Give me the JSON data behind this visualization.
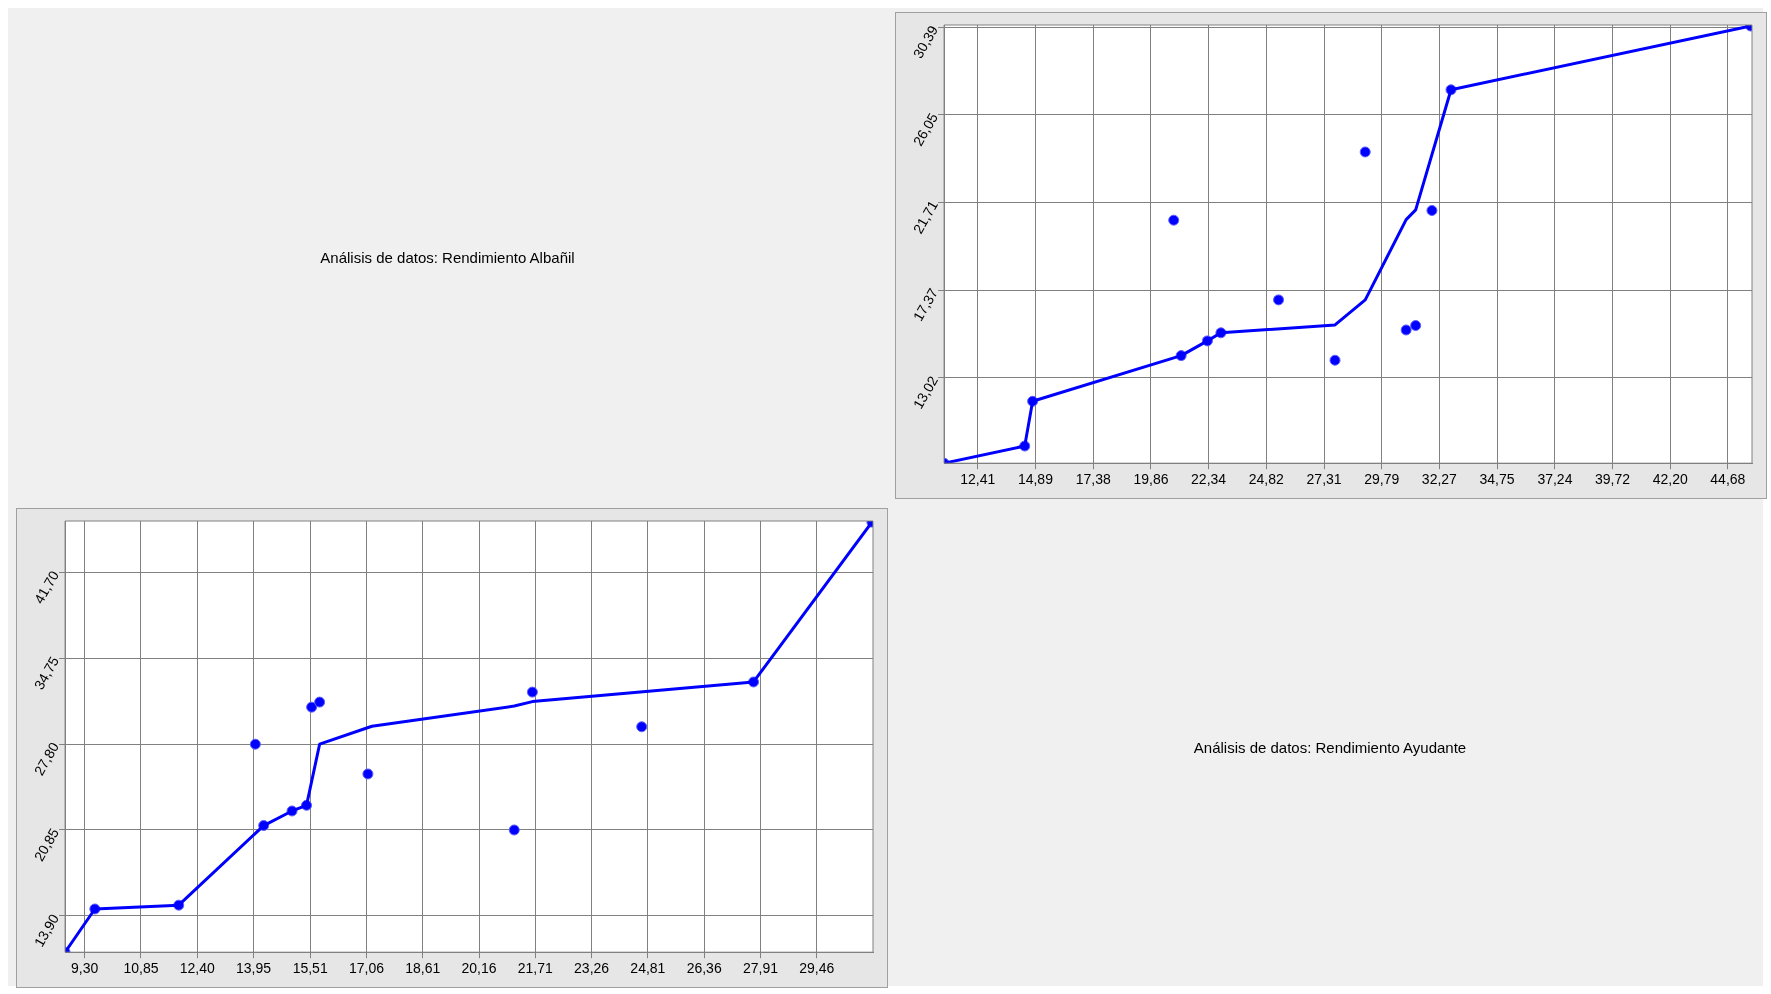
{
  "chart_data": [
    {
      "type": "other",
      "title": "Análisis de datos: Rendimiento Albañil"
    },
    {
      "type": "scatter",
      "grid": true,
      "marker": "circle",
      "xlim": [
        10.96,
        45.72
      ],
      "ylim": [
        8.79,
        30.5
      ],
      "xticks": [
        {
          "value": 12.41,
          "label": "12,41"
        },
        {
          "value": 14.89,
          "label": "14,89"
        },
        {
          "value": 17.38,
          "label": "17,38"
        },
        {
          "value": 19.86,
          "label": "19,86"
        },
        {
          "value": 22.34,
          "label": "22,34"
        },
        {
          "value": 24.82,
          "label": "24,82"
        },
        {
          "value": 27.31,
          "label": "27,31"
        },
        {
          "value": 29.79,
          "label": "29,79"
        },
        {
          "value": 32.27,
          "label": "32,27"
        },
        {
          "value": 34.75,
          "label": "34,75"
        },
        {
          "value": 37.24,
          "label": "37,24"
        },
        {
          "value": 39.72,
          "label": "39,72"
        },
        {
          "value": 42.2,
          "label": "42,20"
        },
        {
          "value": 44.68,
          "label": "44,68"
        }
      ],
      "yticks": [
        {
          "value": 13.02,
          "label": "13,02"
        },
        {
          "value": 17.37,
          "label": "17,37"
        },
        {
          "value": 21.71,
          "label": "21,71"
        },
        {
          "value": 26.05,
          "label": "26,05"
        },
        {
          "value": 30.39,
          "label": "30,39"
        }
      ],
      "series": [
        {
          "type": "line",
          "marker": "none",
          "color": "#0000ff",
          "x": [
            10.96,
            14.43,
            14.77,
            21.16,
            22.29,
            22.87,
            27.78,
            29.08,
            30.84,
            31.25,
            32.77,
            45.66
          ],
          "values": [
            8.79,
            9.64,
            11.86,
            14.12,
            14.85,
            15.25,
            15.64,
            16.88,
            20.86,
            21.34,
            27.29,
            30.45
          ]
        },
        {
          "type": "scatter",
          "color": "#0000ff",
          "x": [
            10.96,
            14.43,
            14.77,
            21.16,
            22.29,
            22.87,
            32.77,
            45.66,
            20.84,
            25.35,
            27.78,
            29.08,
            30.84,
            31.25,
            31.95
          ],
          "values": [
            8.79,
            9.64,
            11.86,
            14.12,
            14.85,
            15.25,
            27.29,
            30.45,
            20.83,
            16.88,
            13.89,
            24.21,
            15.39,
            15.61,
            21.31
          ]
        }
      ]
    },
    {
      "type": "scatter",
      "grid": true,
      "marker": "circle",
      "xlim": [
        8.76,
        31.01
      ],
      "ylim": [
        10.95,
        45.88
      ],
      "xticks": [
        {
          "value": 9.3,
          "label": "9,30"
        },
        {
          "value": 10.85,
          "label": "10,85"
        },
        {
          "value": 12.4,
          "label": "12,40"
        },
        {
          "value": 13.95,
          "label": "13,95"
        },
        {
          "value": 15.51,
          "label": "15,51"
        },
        {
          "value": 17.06,
          "label": "17,06"
        },
        {
          "value": 18.61,
          "label": "18,61"
        },
        {
          "value": 20.16,
          "label": "20,16"
        },
        {
          "value": 21.71,
          "label": "21,71"
        },
        {
          "value": 23.26,
          "label": "23,26"
        },
        {
          "value": 24.81,
          "label": "24,81"
        },
        {
          "value": 26.36,
          "label": "26,36"
        },
        {
          "value": 27.91,
          "label": "27,91"
        },
        {
          "value": 29.46,
          "label": "29,46"
        }
      ],
      "yticks": [
        {
          "value": 13.9,
          "label": "13,90"
        },
        {
          "value": 20.85,
          "label": "20,85"
        },
        {
          "value": 27.8,
          "label": "27,80"
        },
        {
          "value": 34.75,
          "label": "34,75"
        },
        {
          "value": 41.7,
          "label": "41,70"
        }
      ],
      "series": [
        {
          "type": "line",
          "marker": "none",
          "color": "#0000ff",
          "x": [
            8.76,
            9.58,
            11.89,
            14.23,
            15.01,
            15.41,
            15.77,
            17.21,
            21.13,
            21.63,
            27.72,
            30.98
          ],
          "values": [
            10.95,
            14.45,
            14.76,
            21.21,
            22.39,
            22.85,
            27.8,
            29.25,
            30.89,
            31.25,
            32.84,
            45.79
          ]
        },
        {
          "type": "scatter",
          "color": "#0000ff",
          "x": [
            8.76,
            9.58,
            11.89,
            14.23,
            15.01,
            15.41,
            15.55,
            15.77,
            14.0,
            17.1,
            21.13,
            21.63,
            24.64,
            27.72,
            30.98
          ],
          "values": [
            10.95,
            14.45,
            14.76,
            21.21,
            22.39,
            22.85,
            30.8,
            31.21,
            27.8,
            25.39,
            20.85,
            32.02,
            29.21,
            32.84,
            45.79
          ]
        }
      ]
    },
    {
      "type": "other",
      "title": "Análisis de datos: Rendimiento Ayudante"
    }
  ]
}
